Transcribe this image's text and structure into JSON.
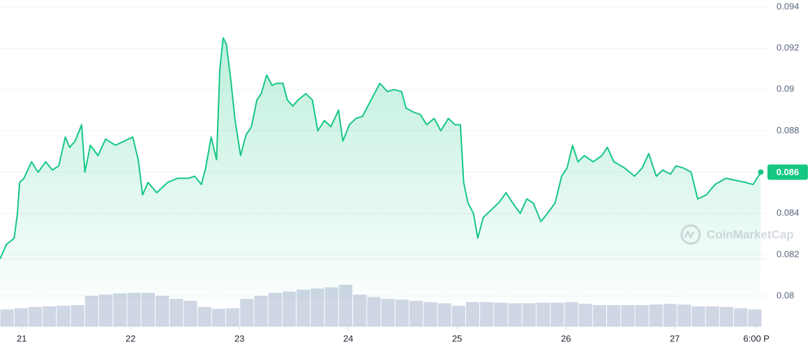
{
  "chart_data": {
    "type": "line",
    "x": [
      20.8,
      20.86,
      20.93,
      20.96,
      20.98,
      21.02,
      21.09,
      21.15,
      21.22,
      21.28,
      21.34,
      21.4,
      21.44,
      21.49,
      21.55,
      21.58,
      21.63,
      21.7,
      21.77,
      21.86,
      21.94,
      22.02,
      22.07,
      22.11,
      22.16,
      22.24,
      22.34,
      22.43,
      22.53,
      22.59,
      22.65,
      22.69,
      22.74,
      22.79,
      22.82,
      22.85,
      22.88,
      22.92,
      22.96,
      23.01,
      23.06,
      23.11,
      23.16,
      23.2,
      23.25,
      23.3,
      23.34,
      23.4,
      23.44,
      23.49,
      23.54,
      23.61,
      23.67,
      23.72,
      23.78,
      23.84,
      23.91,
      23.95,
      24.01,
      24.07,
      24.13,
      24.18,
      24.23,
      24.29,
      24.36,
      24.42,
      24.49,
      24.53,
      24.6,
      24.66,
      24.72,
      24.79,
      24.85,
      24.92,
      24.98,
      25.03,
      25.06,
      25.1,
      25.15,
      25.19,
      25.24,
      25.32,
      25.38,
      25.45,
      25.51,
      25.58,
      25.64,
      25.7,
      25.77,
      25.83,
      25.9,
      25.96,
      26.01,
      26.06,
      26.11,
      26.17,
      26.25,
      26.33,
      26.38,
      26.44,
      26.54,
      26.63,
      26.7,
      26.76,
      26.83,
      26.89,
      26.96,
      27.01,
      27.08,
      27.15,
      27.21,
      27.29,
      27.37,
      27.47,
      27.56,
      27.65,
      27.72,
      27.79
    ],
    "series": [
      {
        "name": "Price",
        "color": "#16c784",
        "values": [
          0.0818,
          0.0825,
          0.0828,
          0.084,
          0.0855,
          0.0857,
          0.0865,
          0.086,
          0.0865,
          0.0861,
          0.0863,
          0.0877,
          0.0872,
          0.0875,
          0.0883,
          0.086,
          0.0873,
          0.0868,
          0.0876,
          0.0873,
          0.0875,
          0.0877,
          0.0866,
          0.0849,
          0.0855,
          0.085,
          0.0855,
          0.0857,
          0.0857,
          0.0858,
          0.0854,
          0.0862,
          0.0877,
          0.0866,
          0.091,
          0.0925,
          0.0922,
          0.0905,
          0.0885,
          0.0868,
          0.0878,
          0.0882,
          0.0895,
          0.0898,
          0.0907,
          0.0902,
          0.0903,
          0.0903,
          0.0895,
          0.0892,
          0.0895,
          0.0898,
          0.0895,
          0.088,
          0.0885,
          0.0882,
          0.089,
          0.0875,
          0.0883,
          0.0886,
          0.0887,
          0.0892,
          0.0897,
          0.0903,
          0.0899,
          0.09,
          0.0899,
          0.0891,
          0.0889,
          0.0888,
          0.0883,
          0.0886,
          0.088,
          0.0886,
          0.0883,
          0.0883,
          0.0855,
          0.0845,
          0.084,
          0.0828,
          0.0838,
          0.0842,
          0.0845,
          0.085,
          0.0845,
          0.084,
          0.0847,
          0.0845,
          0.0836,
          0.084,
          0.0845,
          0.0858,
          0.0862,
          0.0873,
          0.0865,
          0.0868,
          0.0865,
          0.0868,
          0.0872,
          0.0865,
          0.0862,
          0.0858,
          0.0862,
          0.0869,
          0.0858,
          0.0861,
          0.0859,
          0.0863,
          0.0862,
          0.086,
          0.0847,
          0.0849,
          0.0854,
          0.0857,
          0.0856,
          0.0855,
          0.0854,
          0.086
        ]
      }
    ],
    "volume": {
      "color": "#cfd6e4",
      "values": [
        28,
        30,
        32,
        33,
        34,
        35,
        50,
        52,
        54,
        55,
        55,
        50,
        45,
        42,
        32,
        29,
        30,
        45,
        50,
        55,
        57,
        60,
        62,
        64,
        68,
        52,
        48,
        45,
        44,
        42,
        40,
        38,
        34,
        40,
        40,
        39,
        38,
        38,
        39,
        39,
        40,
        37,
        35,
        35,
        35,
        35,
        36,
        37,
        36,
        33,
        33,
        32,
        30,
        28
      ]
    },
    "reference_line": 0.0818,
    "current_label": "0.086",
    "watermark": "CoinMarketCap",
    "xlim": [
      20.8,
      27.8
    ],
    "xticks": [
      21,
      22,
      23,
      24,
      25,
      26,
      27,
      {
        "value": 27.75,
        "label": "6:00 P"
      }
    ],
    "ylim": [
      0.08,
      0.094
    ],
    "yticks": [
      0.08,
      0.082,
      0.084,
      0.086,
      0.088,
      0.09,
      0.092,
      0.094
    ],
    "grid": true
  }
}
